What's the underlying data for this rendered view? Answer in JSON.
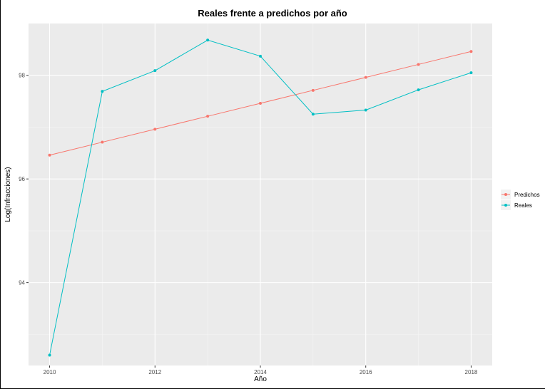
{
  "chart_data": {
    "type": "line",
    "title": "Reales frente a predichos por año",
    "xlabel": "Año",
    "ylabel": "Log(Infracciones)",
    "x": [
      2010,
      2011,
      2012,
      2013,
      2014,
      2015,
      2016,
      2017,
      2018
    ],
    "xticks": [
      2010,
      2012,
      2014,
      2016,
      2018
    ],
    "yticks": [
      94,
      96,
      98
    ],
    "xlim": [
      2009.6,
      2018.4
    ],
    "ylim": [
      92.4,
      99.0
    ],
    "grid": true,
    "legend_position": "right",
    "series": [
      {
        "name": "Predichos",
        "color": "#F8766D",
        "values": [
          96.46,
          96.71,
          96.96,
          97.21,
          97.46,
          97.71,
          97.96,
          98.21,
          98.46
        ]
      },
      {
        "name": "Reales",
        "color": "#00BFC4",
        "values": [
          92.6,
          97.69,
          98.09,
          98.68,
          98.37,
          97.25,
          97.33,
          97.72,
          98.05
        ]
      }
    ]
  }
}
